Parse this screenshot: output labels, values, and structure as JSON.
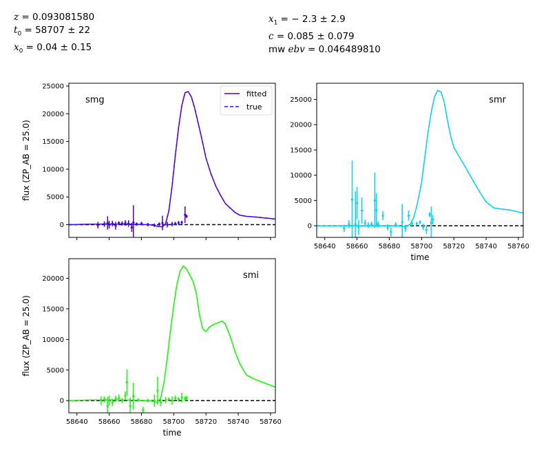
{
  "header": {
    "z": {
      "sym": "z",
      "text": " = 0.093081580"
    },
    "t0": {
      "sym": "t",
      "sub": "0",
      "text": " = 58707 ± 22"
    },
    "x0": {
      "sym": "x",
      "sub": "0",
      "text": " = 0.04 ± 0.15"
    },
    "x1": {
      "sym": "x",
      "sub": "1",
      "text": " = − 2.3 ± 2.9"
    },
    "c": {
      "sym": "c",
      "text": " = 0.085 ± 0.079"
    },
    "mwebv": {
      "pre": "mw ",
      "sym": "ebv",
      "text": " = 0.046489810"
    }
  },
  "chart_data": [
    {
      "type": "line",
      "band": "smg",
      "color": "#4400ff",
      "ylabel": "flux (ZP_AB = 25.0)",
      "xlabel": "",
      "xlim": [
        58635,
        58763
      ],
      "ylim": [
        -2300,
        25500
      ],
      "yticks": [
        0,
        5000,
        10000,
        15000,
        20000,
        25000
      ],
      "xticks": [
        58640,
        58660,
        58680,
        58700,
        58720,
        58740,
        58760
      ],
      "show_xticklabels": false,
      "legend": {
        "placement": "top-right",
        "entries": [
          "fitted",
          "true"
        ]
      },
      "model": {
        "x": [
          58635,
          58650,
          58670,
          58685,
          58690,
          58693,
          58695,
          58697,
          58699,
          58701,
          58703,
          58705,
          58707,
          58709,
          58711,
          58713,
          58715,
          58717,
          58720,
          58723,
          58726,
          58729,
          58732,
          58735,
          58738,
          58741,
          58745,
          58750,
          58755,
          58763
        ],
        "y": [
          0,
          100,
          100,
          0,
          -300,
          -400,
          200,
          2500,
          7000,
          12500,
          17500,
          21500,
          23800,
          24000,
          23000,
          21000,
          18500,
          16000,
          12000,
          9200,
          7000,
          5300,
          3800,
          3000,
          2200,
          1700,
          1500,
          1400,
          1250,
          1000
        ]
      },
      "obs": [
        {
          "x": 58653,
          "y": -100,
          "err": 600
        },
        {
          "x": 58657,
          "y": 100,
          "err": 500
        },
        {
          "x": 58659,
          "y": 300,
          "err": 1200
        },
        {
          "x": 58660,
          "y": 0,
          "err": 700
        },
        {
          "x": 58662,
          "y": 200,
          "err": 500
        },
        {
          "x": 58664,
          "y": -200,
          "err": 700
        },
        {
          "x": 58666,
          "y": 300,
          "err": 300
        },
        {
          "x": 58668,
          "y": 200,
          "err": 400
        },
        {
          "x": 58670,
          "y": 300,
          "err": 500
        },
        {
          "x": 58672,
          "y": 200,
          "err": 600
        },
        {
          "x": 58674,
          "y": -500,
          "err": 800
        },
        {
          "x": 58675,
          "y": 400,
          "err": 3100
        },
        {
          "x": 58677,
          "y": 100,
          "err": 300
        },
        {
          "x": 58680,
          "y": 200,
          "err": 300
        },
        {
          "x": 58684,
          "y": 0,
          "err": 300
        },
        {
          "x": 58688,
          "y": -100,
          "err": 300
        },
        {
          "x": 58691,
          "y": 100,
          "err": 300
        },
        {
          "x": 58693,
          "y": 300,
          "err": 1300
        },
        {
          "x": 58696,
          "y": 0,
          "err": 500
        },
        {
          "x": 58699,
          "y": 100,
          "err": 400
        },
        {
          "x": 58701,
          "y": 200,
          "err": 300
        },
        {
          "x": 58703,
          "y": 300,
          "err": 400
        },
        {
          "x": 58705,
          "y": 400,
          "err": 300
        },
        {
          "x": 58707,
          "y": 1800,
          "err": 1500
        },
        {
          "x": 58708,
          "y": 1500,
          "err": 300
        }
      ]
    },
    {
      "type": "line",
      "band": "smr",
      "color": "#00d4ff",
      "ylabel": "",
      "xlabel": "time",
      "xlim": [
        58635,
        58763
      ],
      "ylim": [
        -2300,
        28200
      ],
      "yticks": [
        0,
        5000,
        10000,
        15000,
        20000,
        25000
      ],
      "xticks": [
        58640,
        58660,
        58680,
        58700,
        58720,
        58740,
        58760
      ],
      "show_xticklabels": true,
      "model": {
        "x": [
          58635,
          58650,
          58670,
          58685,
          58690,
          58693,
          58695,
          58697,
          58700,
          58702,
          58704,
          58706,
          58708,
          58710,
          58712,
          58714,
          58716,
          58718,
          58720,
          58725,
          58730,
          58735,
          58740,
          58745,
          58750,
          58755,
          58763
        ],
        "y": [
          0,
          0,
          0,
          0,
          -200,
          300,
          1500,
          3800,
          8500,
          13500,
          18500,
          22500,
          25500,
          26800,
          26500,
          24500,
          21000,
          17800,
          15500,
          12800,
          10000,
          7200,
          4700,
          3500,
          3300,
          3100,
          2500
        ]
      },
      "obs": [
        {
          "x": 58652,
          "y": -500,
          "err": 700
        },
        {
          "x": 58655,
          "y": 300,
          "err": 800
        },
        {
          "x": 58657,
          "y": 5200,
          "err": 7700
        },
        {
          "x": 58659,
          "y": 300,
          "err": 6500
        },
        {
          "x": 58660,
          "y": 4500,
          "err": 3200
        },
        {
          "x": 58661,
          "y": -300,
          "err": 1500
        },
        {
          "x": 58663,
          "y": 3000,
          "err": 2600
        },
        {
          "x": 58665,
          "y": 500,
          "err": 700
        },
        {
          "x": 58667,
          "y": 100,
          "err": 600
        },
        {
          "x": 58669,
          "y": 300,
          "err": 500
        },
        {
          "x": 58671,
          "y": 5000,
          "err": 5500
        },
        {
          "x": 58672,
          "y": 3100,
          "err": 3300
        },
        {
          "x": 58673,
          "y": 300,
          "err": 600
        },
        {
          "x": 58676,
          "y": 2000,
          "err": 900
        },
        {
          "x": 58679,
          "y": -300,
          "err": 600
        },
        {
          "x": 58681,
          "y": -1200,
          "err": 900
        },
        {
          "x": 58684,
          "y": 200,
          "err": 500
        },
        {
          "x": 58688,
          "y": 700,
          "err": 3600
        },
        {
          "x": 58690,
          "y": -500,
          "err": 700
        },
        {
          "x": 58692,
          "y": 2000,
          "err": 1000
        },
        {
          "x": 58694,
          "y": 400,
          "err": 700
        },
        {
          "x": 58697,
          "y": 400,
          "err": 400
        },
        {
          "x": 58699,
          "y": 700,
          "err": 400
        },
        {
          "x": 58701,
          "y": -200,
          "err": 600
        },
        {
          "x": 58703,
          "y": -800,
          "err": 800
        },
        {
          "x": 58705,
          "y": 2200,
          "err": 500
        },
        {
          "x": 58706,
          "y": 600,
          "err": 3200
        },
        {
          "x": 58707,
          "y": 1200,
          "err": 900
        }
      ]
    },
    {
      "type": "line",
      "band": "smi",
      "color": "#11ff00",
      "ylabel": "flux (ZP_AB = 25.0)",
      "xlabel": "time",
      "xlim": [
        58635,
        58763
      ],
      "ylim": [
        -2000,
        23200
      ],
      "yticks": [
        0,
        5000,
        10000,
        15000,
        20000
      ],
      "xticks": [
        58640,
        58660,
        58680,
        58700,
        58720,
        58740,
        58760
      ],
      "show_xticklabels": true,
      "model": {
        "x": [
          58635,
          58650,
          58670,
          58685,
          58690,
          58692,
          58694,
          58696,
          58698,
          58700,
          58702,
          58704,
          58706,
          58708,
          58710,
          58712,
          58714,
          58716,
          58718,
          58720,
          58722,
          58725,
          58728,
          58730,
          58732,
          58735,
          58738,
          58741,
          58745,
          58750,
          58755,
          58763
        ],
        "y": [
          0,
          100,
          100,
          0,
          -300,
          500,
          3000,
          7000,
          11500,
          15500,
          19000,
          21200,
          22000,
          21500,
          20500,
          19500,
          17500,
          14000,
          11700,
          11300,
          12000,
          12500,
          12800,
          13000,
          12500,
          10500,
          8000,
          6000,
          4200,
          3500,
          3000,
          2200
        ]
      },
      "obs": [
        {
          "x": 58655,
          "y": 0,
          "err": 700
        },
        {
          "x": 58657,
          "y": 200,
          "err": 500
        },
        {
          "x": 58659,
          "y": -900,
          "err": 1500
        },
        {
          "x": 58660,
          "y": 0,
          "err": 800
        },
        {
          "x": 58662,
          "y": -300,
          "err": 600
        },
        {
          "x": 58664,
          "y": 300,
          "err": 500
        },
        {
          "x": 58666,
          "y": 400,
          "err": 600
        },
        {
          "x": 58668,
          "y": 0,
          "err": 400
        },
        {
          "x": 58670,
          "y": 800,
          "err": 700
        },
        {
          "x": 58671,
          "y": 3000,
          "err": 2100
        },
        {
          "x": 58673,
          "y": -900,
          "err": 1400
        },
        {
          "x": 58675,
          "y": 700,
          "err": 2200
        },
        {
          "x": 58678,
          "y": 100,
          "err": 300
        },
        {
          "x": 58681,
          "y": -1500,
          "err": 500
        },
        {
          "x": 58684,
          "y": 0,
          "err": 300
        },
        {
          "x": 58688,
          "y": 0,
          "err": 1000
        },
        {
          "x": 58690,
          "y": 1600,
          "err": 2300
        },
        {
          "x": 58692,
          "y": -300,
          "err": 600
        },
        {
          "x": 58695,
          "y": 100,
          "err": 500
        },
        {
          "x": 58697,
          "y": 200,
          "err": 300
        },
        {
          "x": 58699,
          "y": 0,
          "err": 700
        },
        {
          "x": 58701,
          "y": 400,
          "err": 400
        },
        {
          "x": 58703,
          "y": 200,
          "err": 400
        },
        {
          "x": 58705,
          "y": 500,
          "err": 800
        },
        {
          "x": 58707,
          "y": 300,
          "err": 400
        },
        {
          "x": 58708,
          "y": 400,
          "err": 400
        }
      ]
    }
  ]
}
